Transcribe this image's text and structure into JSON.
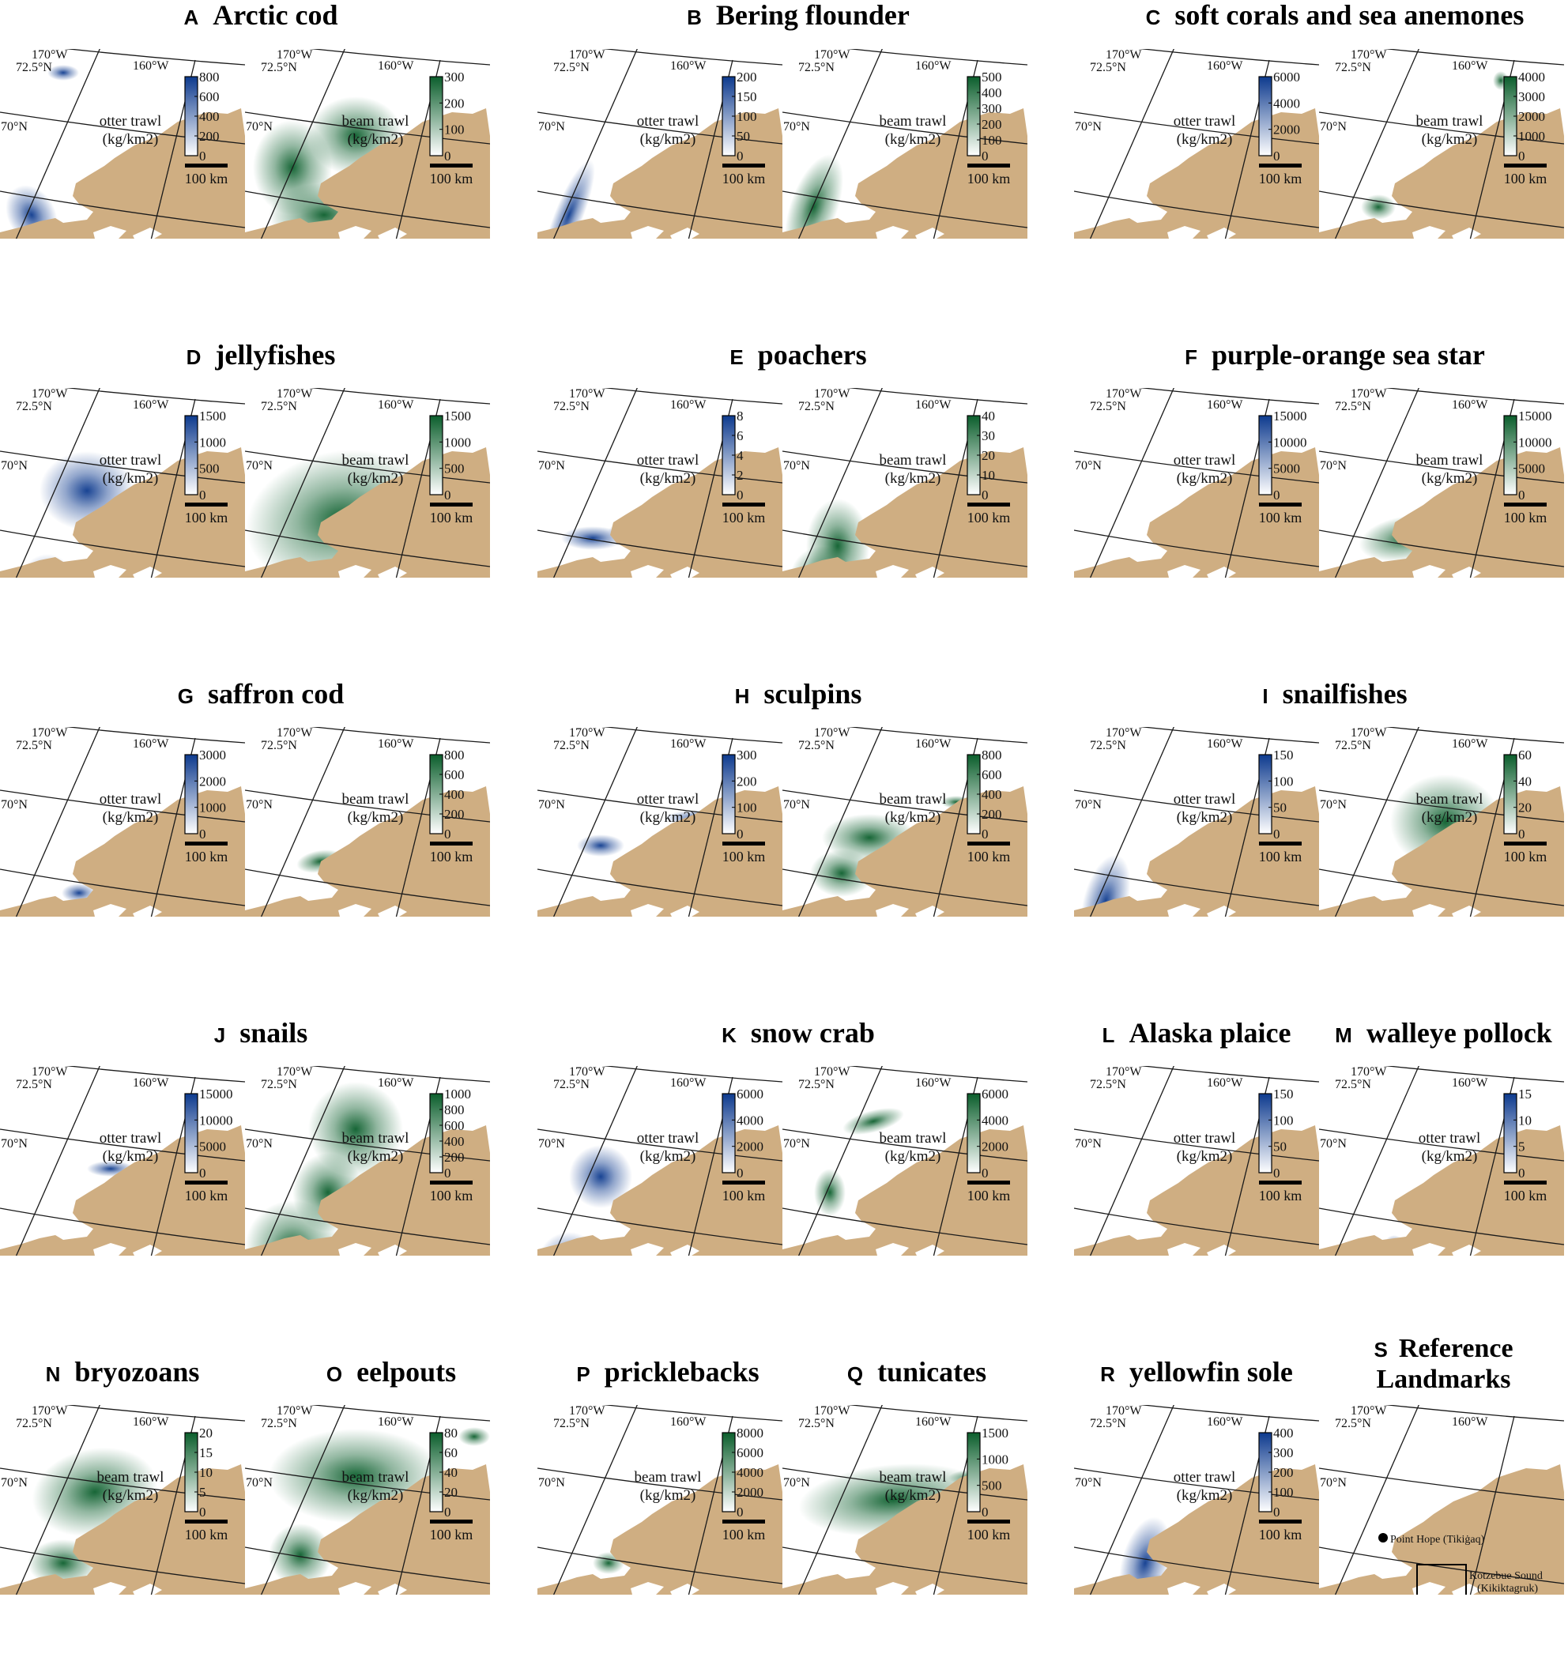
{
  "common": {
    "grid_labels": {
      "lon_left": "170°W",
      "lon_right": "160°W",
      "lat_north": "72.5°N",
      "lat_mid": "70°N"
    },
    "scale_bar_label": "100 km",
    "unit_label": "(kg/km2)",
    "gear_labels": {
      "otter": "otter trawl",
      "beam": "beam trawl"
    },
    "colors": {
      "land": "#cfae82",
      "otter_trawl": "#0d3a8e",
      "beam_trawl": "#0b5e2c",
      "grid": "#1a1a1a",
      "water": "#ffffff"
    }
  },
  "panels": [
    {
      "letter": "A",
      "title": "Arctic cod",
      "maps": [
        {
          "gear": "otter",
          "legend_ticks": [
            "800",
            "600",
            "400",
            "200",
            "0"
          ]
        },
        {
          "gear": "beam",
          "legend_ticks": [
            "300",
            "200",
            "100",
            "0"
          ]
        }
      ]
    },
    {
      "letter": "B",
      "title": "Bering flounder",
      "maps": [
        {
          "gear": "otter",
          "legend_ticks": [
            "200",
            "150",
            "100",
            "50",
            "0"
          ]
        },
        {
          "gear": "beam",
          "legend_ticks": [
            "500",
            "400",
            "300",
            "200",
            "100",
            "0"
          ]
        }
      ]
    },
    {
      "letter": "C",
      "title": "soft corals and sea anemones",
      "maps": [
        {
          "gear": "otter",
          "legend_ticks": [
            "6000",
            "4000",
            "2000",
            "0"
          ]
        },
        {
          "gear": "beam",
          "legend_ticks": [
            "4000",
            "3000",
            "2000",
            "1000",
            "0"
          ]
        }
      ]
    },
    {
      "letter": "D",
      "title": "jellyfishes",
      "maps": [
        {
          "gear": "otter",
          "legend_ticks": [
            "1500",
            "1000",
            "500",
            "0"
          ]
        },
        {
          "gear": "beam",
          "legend_ticks": [
            "1500",
            "1000",
            "500",
            "0"
          ]
        }
      ]
    },
    {
      "letter": "E",
      "title": "poachers",
      "maps": [
        {
          "gear": "otter",
          "legend_ticks": [
            "8",
            "6",
            "4",
            "2",
            "0"
          ]
        },
        {
          "gear": "beam",
          "legend_ticks": [
            "40",
            "30",
            "20",
            "10",
            "0"
          ]
        }
      ]
    },
    {
      "letter": "F",
      "title": "purple-orange sea star",
      "maps": [
        {
          "gear": "otter",
          "legend_ticks": [
            "15000",
            "10000",
            "5000",
            "0"
          ]
        },
        {
          "gear": "beam",
          "legend_ticks": [
            "15000",
            "10000",
            "5000",
            "0"
          ]
        }
      ]
    },
    {
      "letter": "G",
      "title": "saffron cod",
      "maps": [
        {
          "gear": "otter",
          "legend_ticks": [
            "3000",
            "2000",
            "1000",
            "0"
          ]
        },
        {
          "gear": "beam",
          "legend_ticks": [
            "800",
            "600",
            "400",
            "200",
            "0"
          ]
        }
      ]
    },
    {
      "letter": "H",
      "title": "sculpins",
      "maps": [
        {
          "gear": "otter",
          "legend_ticks": [
            "300",
            "200",
            "100",
            "0"
          ]
        },
        {
          "gear": "beam",
          "legend_ticks": [
            "800",
            "600",
            "400",
            "200",
            "0"
          ]
        }
      ]
    },
    {
      "letter": "I",
      "title": "snailfishes",
      "maps": [
        {
          "gear": "otter",
          "legend_ticks": [
            "150",
            "100",
            "50",
            "0"
          ]
        },
        {
          "gear": "beam",
          "legend_ticks": [
            "60",
            "40",
            "20",
            "0"
          ]
        }
      ]
    },
    {
      "letter": "J",
      "title": "snails",
      "maps": [
        {
          "gear": "otter",
          "legend_ticks": [
            "15000",
            "10000",
            "5000",
            "0"
          ]
        },
        {
          "gear": "beam",
          "legend_ticks": [
            "1000",
            "800",
            "600",
            "400",
            "200",
            "0"
          ]
        }
      ]
    },
    {
      "letter": "K",
      "title": "snow crab",
      "maps": [
        {
          "gear": "otter",
          "legend_ticks": [
            "6000",
            "4000",
            "2000",
            "0"
          ]
        },
        {
          "gear": "beam",
          "legend_ticks": [
            "6000",
            "4000",
            "2000",
            "0"
          ]
        }
      ]
    },
    {
      "letter": "L",
      "title": "Alaska plaice",
      "maps": [
        {
          "gear": "otter",
          "legend_ticks": [
            "150",
            "100",
            "50",
            "0"
          ]
        }
      ]
    },
    {
      "letter": "M",
      "title": "walleye pollock",
      "maps": [
        {
          "gear": "otter",
          "legend_ticks": [
            "15",
            "10",
            "5",
            "0"
          ]
        }
      ]
    },
    {
      "letter": "N",
      "title": "bryozoans",
      "maps": [
        {
          "gear": "beam",
          "legend_ticks": [
            "20",
            "15",
            "10",
            "5",
            "0"
          ]
        }
      ]
    },
    {
      "letter": "O",
      "title": "eelpouts",
      "maps": [
        {
          "gear": "beam",
          "legend_ticks": [
            "80",
            "60",
            "40",
            "20",
            "0"
          ]
        }
      ]
    },
    {
      "letter": "P",
      "title": "pricklebacks",
      "maps": [
        {
          "gear": "beam",
          "legend_ticks": [
            "8000",
            "6000",
            "4000",
            "2000",
            "0"
          ]
        }
      ]
    },
    {
      "letter": "Q",
      "title": "tunicates",
      "maps": [
        {
          "gear": "beam",
          "legend_ticks": [
            "1500",
            "1000",
            "500",
            "0"
          ]
        }
      ]
    },
    {
      "letter": "R",
      "title": "yellowfin sole",
      "maps": [
        {
          "gear": "otter",
          "legend_ticks": [
            "400",
            "300",
            "200",
            "100",
            "0"
          ]
        }
      ]
    },
    {
      "letter": "S",
      "title": "Reference Landmarks",
      "maps": [
        {
          "gear": "reference",
          "legend_ticks": []
        }
      ]
    }
  ],
  "reference_landmarks": [
    {
      "name": "Point Hope (Tikiġaq)",
      "marker": "dot"
    },
    {
      "name": "Kotzebue Sound",
      "name_alt": "(Kikiktagruk)",
      "marker": "box"
    }
  ]
}
